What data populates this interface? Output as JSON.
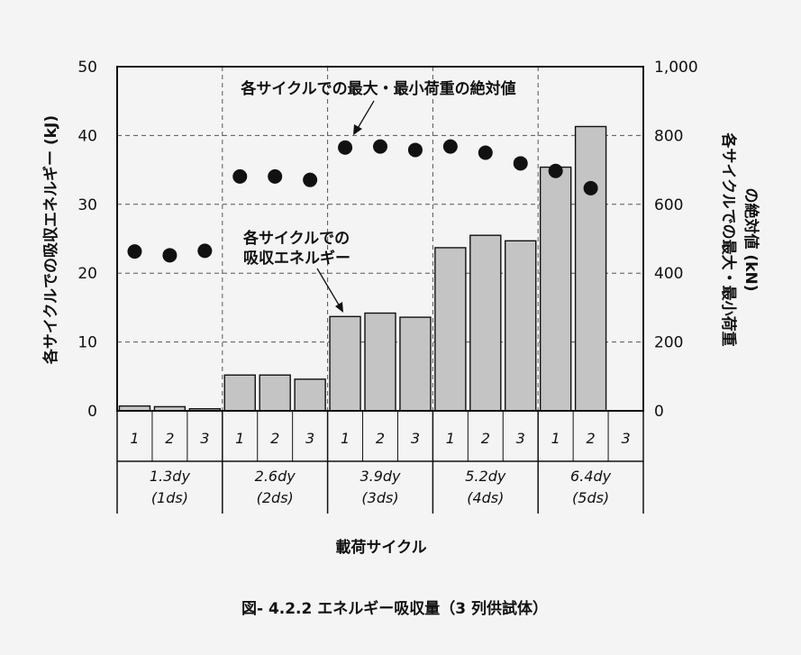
{
  "chart_data": {
    "type": "bar",
    "title": "",
    "caption": "図- 4.2.2  エネルギー吸収量（3 列供試体）",
    "xlabel": "載荷サイクル",
    "ylabel_left": "各サイクルでの吸収エネルギー (kJ)",
    "ylabel_right_line1": "各サイクルでの最大・最小荷重",
    "ylabel_right_line2": "の絶対値 (kN)",
    "ylim_left": [
      0,
      50
    ],
    "ylim_right": [
      0,
      1000
    ],
    "left_ticks": [
      "0",
      "10",
      "20",
      "30",
      "40",
      "50"
    ],
    "right_ticks": [
      "0",
      "200",
      "400",
      "600",
      "800",
      "1,000"
    ],
    "grid": "horizontal dashed",
    "cycle_labels": [
      "1",
      "2",
      "3",
      "1",
      "2",
      "3",
      "1",
      "2",
      "3",
      "1",
      "2",
      "3",
      "1",
      "2",
      "3"
    ],
    "groups": [
      {
        "line1": "1.3dy",
        "line2": "(1ds)"
      },
      {
        "line1": "2.6dy",
        "line2": "(2ds)"
      },
      {
        "line1": "3.9dy",
        "line2": "(3ds)"
      },
      {
        "line1": "5.2dy",
        "line2": "(4ds)"
      },
      {
        "line1": "6.4dy",
        "line2": "(5ds)"
      }
    ],
    "series": [
      {
        "type": "bar",
        "axis": "left",
        "values": [
          0.7,
          0.6,
          0.3,
          5.2,
          5.2,
          4.6,
          13.7,
          14.2,
          13.6,
          23.7,
          25.5,
          24.7,
          35.4,
          41.3,
          null
        ],
        "color": "#c4c4c4"
      },
      {
        "type": "scatter",
        "axis": "right",
        "values": [
          463,
          452,
          465,
          681,
          681,
          671,
          765,
          768,
          758,
          768,
          750,
          719,
          697,
          647,
          null
        ],
        "color": "#111111"
      }
    ],
    "annotations": {
      "markers": "各サイクルでの最大・最小荷重の絶対値",
      "bars_line1": "各サイクルでの",
      "bars_line2": "吸収エネルギー"
    }
  }
}
